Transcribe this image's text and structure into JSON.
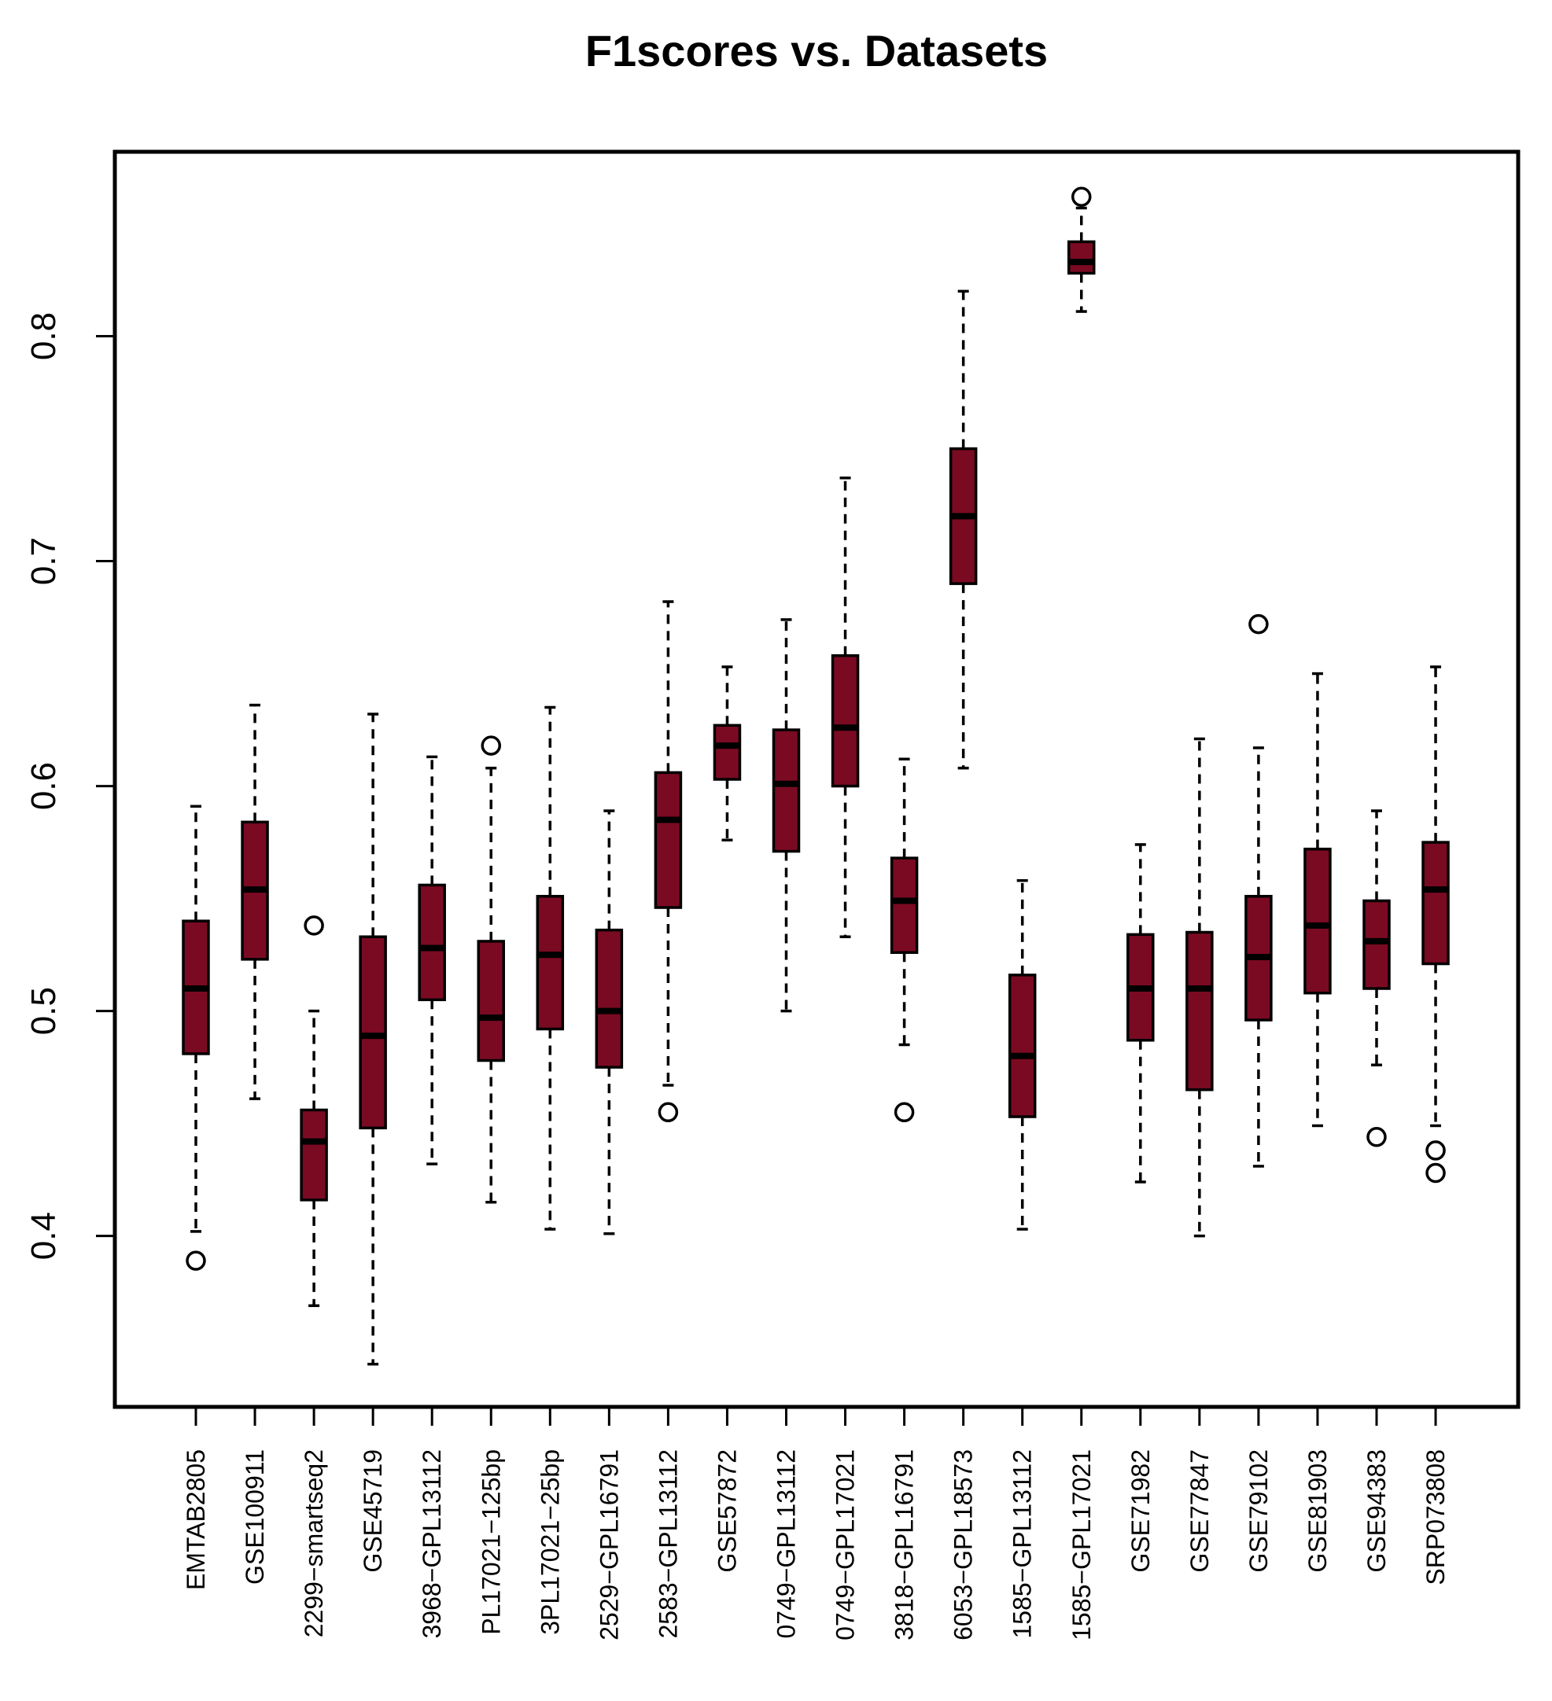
{
  "chart_data": {
    "type": "box",
    "title": "F1scores vs. Datasets",
    "xlabel": "",
    "ylabel": "",
    "ylim": [
      0.324,
      0.882
    ],
    "yticks": [
      0.4,
      0.5,
      0.6,
      0.7,
      0.8
    ],
    "ytick_labels": [
      "0.4",
      "0.5",
      "0.6",
      "0.7",
      "0.8"
    ],
    "box_color": "#7a0a22",
    "categories": [
      "EMTAB2805",
      "GSE100911",
      "2299−smartseq2",
      "GSE45719",
      "3968−GPL13112",
      "PL17021−125bp",
      "3PL17021−25bp",
      "2529−GPL16791",
      "2583−GPL13112",
      "GSE57872",
      "0749−GPL13112",
      "0749−GPL17021",
      "3818−GPL16791",
      "6053−GPL18573",
      "1585−GPL13112",
      "1585−GPL17021",
      "GSE71982",
      "GSE77847",
      "GSE79102",
      "GSE81903",
      "GSE94383",
      "SRP073808"
    ],
    "boxes": [
      {
        "whisker_low": 0.402,
        "q1": 0.481,
        "median": 0.51,
        "q3": 0.54,
        "whisker_high": 0.591,
        "outliers": [
          0.389
        ]
      },
      {
        "whisker_low": 0.461,
        "q1": 0.523,
        "median": 0.554,
        "q3": 0.584,
        "whisker_high": 0.636,
        "outliers": []
      },
      {
        "whisker_low": 0.369,
        "q1": 0.416,
        "median": 0.442,
        "q3": 0.456,
        "whisker_high": 0.5,
        "outliers": [
          0.538
        ]
      },
      {
        "whisker_low": 0.343,
        "q1": 0.448,
        "median": 0.489,
        "q3": 0.533,
        "whisker_high": 0.632,
        "outliers": []
      },
      {
        "whisker_low": 0.432,
        "q1": 0.505,
        "median": 0.528,
        "q3": 0.556,
        "whisker_high": 0.613,
        "outliers": []
      },
      {
        "whisker_low": 0.415,
        "q1": 0.478,
        "median": 0.497,
        "q3": 0.531,
        "whisker_high": 0.608,
        "outliers": [
          0.618
        ]
      },
      {
        "whisker_low": 0.403,
        "q1": 0.492,
        "median": 0.525,
        "q3": 0.551,
        "whisker_high": 0.635,
        "outliers": []
      },
      {
        "whisker_low": 0.401,
        "q1": 0.475,
        "median": 0.5,
        "q3": 0.536,
        "whisker_high": 0.589,
        "outliers": []
      },
      {
        "whisker_low": 0.467,
        "q1": 0.546,
        "median": 0.585,
        "q3": 0.606,
        "whisker_high": 0.682,
        "outliers": [
          0.455
        ]
      },
      {
        "whisker_low": 0.576,
        "q1": 0.603,
        "median": 0.618,
        "q3": 0.627,
        "whisker_high": 0.653,
        "outliers": []
      },
      {
        "whisker_low": 0.5,
        "q1": 0.571,
        "median": 0.601,
        "q3": 0.625,
        "whisker_high": 0.674,
        "outliers": []
      },
      {
        "whisker_low": 0.533,
        "q1": 0.6,
        "median": 0.626,
        "q3": 0.658,
        "whisker_high": 0.737,
        "outliers": []
      },
      {
        "whisker_low": 0.485,
        "q1": 0.526,
        "median": 0.549,
        "q3": 0.568,
        "whisker_high": 0.612,
        "outliers": [
          0.455
        ]
      },
      {
        "whisker_low": 0.608,
        "q1": 0.69,
        "median": 0.72,
        "q3": 0.75,
        "whisker_high": 0.82,
        "outliers": []
      },
      {
        "whisker_low": 0.403,
        "q1": 0.453,
        "median": 0.48,
        "q3": 0.516,
        "whisker_high": 0.558,
        "outliers": []
      },
      {
        "whisker_low": 0.811,
        "q1": 0.828,
        "median": 0.833,
        "q3": 0.842,
        "whisker_high": 0.857,
        "outliers": [
          0.862
        ]
      },
      {
        "whisker_low": 0.424,
        "q1": 0.487,
        "median": 0.51,
        "q3": 0.534,
        "whisker_high": 0.574,
        "outliers": []
      },
      {
        "whisker_low": 0.4,
        "q1": 0.465,
        "median": 0.51,
        "q3": 0.535,
        "whisker_high": 0.621,
        "outliers": []
      },
      {
        "whisker_low": 0.431,
        "q1": 0.496,
        "median": 0.524,
        "q3": 0.551,
        "whisker_high": 0.617,
        "outliers": [
          0.672
        ]
      },
      {
        "whisker_low": 0.449,
        "q1": 0.508,
        "median": 0.538,
        "q3": 0.572,
        "whisker_high": 0.65,
        "outliers": []
      },
      {
        "whisker_low": 0.476,
        "q1": 0.51,
        "median": 0.531,
        "q3": 0.549,
        "whisker_high": 0.589,
        "outliers": [
          0.444
        ]
      },
      {
        "whisker_low": 0.449,
        "q1": 0.521,
        "median": 0.554,
        "q3": 0.575,
        "whisker_high": 0.653,
        "outliers": [
          0.438,
          0.428
        ]
      }
    ]
  }
}
